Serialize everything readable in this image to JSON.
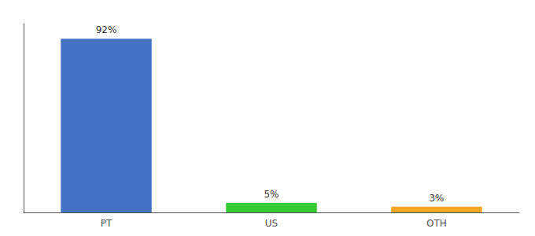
{
  "chart_data": {
    "type": "bar",
    "categories": [
      "PT",
      "US",
      "OTH"
    ],
    "values": [
      92,
      5,
      3
    ],
    "value_labels": [
      "92%",
      "5%",
      "3%"
    ],
    "colors": [
      "#4472c4",
      "#33cc33",
      "#f5a623"
    ],
    "ylim": [
      0,
      100
    ],
    "grid": false,
    "data_labels": true,
    "tick_labels": "x"
  }
}
